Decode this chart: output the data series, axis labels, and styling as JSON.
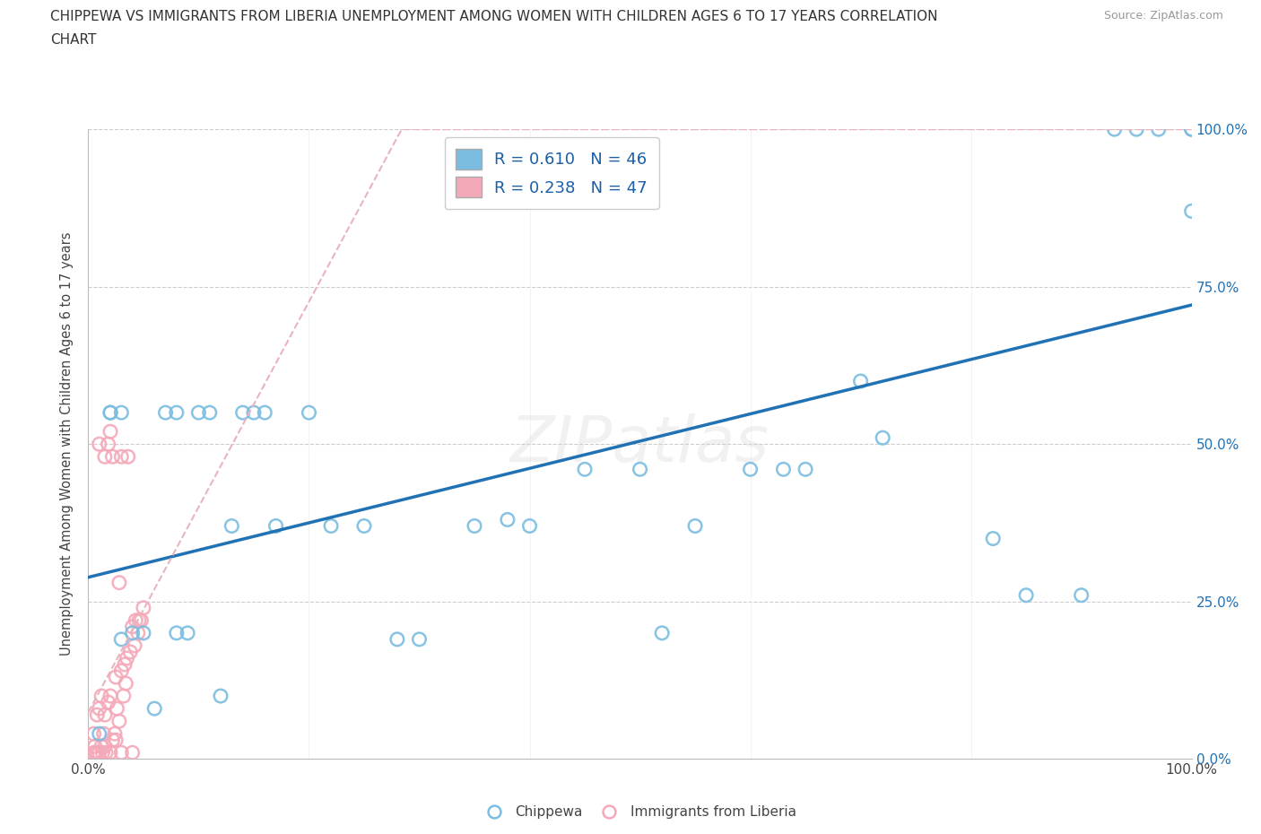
{
  "title_line1": "CHIPPEWA VS IMMIGRANTS FROM LIBERIA UNEMPLOYMENT AMONG WOMEN WITH CHILDREN AGES 6 TO 17 YEARS CORRELATION",
  "title_line2": "CHART",
  "source_text": "Source: ZipAtlas.com",
  "ylabel": "Unemployment Among Women with Children Ages 6 to 17 years",
  "xlim": [
    0.0,
    1.0
  ],
  "ylim": [
    0.0,
    1.0
  ],
  "R_chippewa": 0.61,
  "N_chippewa": 46,
  "R_liberia": 0.238,
  "N_liberia": 47,
  "chippewa_edge_color": "#7bbde0",
  "liberia_edge_color": "#f4a9b8",
  "trend_chippewa_color": "#2171b5",
  "trend_liberia_color": "#e8b4c0",
  "watermark": "ZIPatlas",
  "chippewa_x": [
    0.01,
    0.02,
    0.02,
    0.03,
    0.03,
    0.04,
    0.05,
    0.06,
    0.07,
    0.08,
    0.08,
    0.09,
    0.1,
    0.11,
    0.12,
    0.13,
    0.14,
    0.15,
    0.16,
    0.17,
    0.2,
    0.22,
    0.25,
    0.28,
    0.3,
    0.35,
    0.38,
    0.4,
    0.45,
    0.5,
    0.52,
    0.55,
    0.6,
    0.63,
    0.65,
    0.7,
    0.72,
    0.82,
    0.85,
    0.9,
    0.93,
    0.95,
    0.97,
    1.0,
    1.0,
    1.0
  ],
  "chippewa_y": [
    0.04,
    0.55,
    0.55,
    0.55,
    0.19,
    0.2,
    0.2,
    0.08,
    0.55,
    0.2,
    0.55,
    0.2,
    0.55,
    0.55,
    0.1,
    0.37,
    0.55,
    0.55,
    0.55,
    0.37,
    0.55,
    0.37,
    0.37,
    0.19,
    0.19,
    0.37,
    0.38,
    0.37,
    0.46,
    0.46,
    0.2,
    0.37,
    0.46,
    0.46,
    0.46,
    0.6,
    0.51,
    0.35,
    0.26,
    0.26,
    1.0,
    1.0,
    1.0,
    1.0,
    1.0,
    0.87
  ],
  "liberia_x": [
    0.005,
    0.005,
    0.006,
    0.007,
    0.008,
    0.008,
    0.01,
    0.01,
    0.01,
    0.012,
    0.012,
    0.013,
    0.014,
    0.015,
    0.015,
    0.015,
    0.016,
    0.018,
    0.018,
    0.02,
    0.02,
    0.02,
    0.022,
    0.022,
    0.024,
    0.025,
    0.025,
    0.026,
    0.028,
    0.028,
    0.03,
    0.03,
    0.03,
    0.032,
    0.033,
    0.034,
    0.035,
    0.036,
    0.038,
    0.04,
    0.04,
    0.042,
    0.043,
    0.045,
    0.046,
    0.048,
    0.05
  ],
  "liberia_y": [
    0.01,
    0.04,
    0.02,
    0.01,
    0.01,
    0.07,
    0.01,
    0.08,
    0.5,
    0.02,
    0.1,
    0.01,
    0.04,
    0.02,
    0.07,
    0.48,
    0.01,
    0.09,
    0.5,
    0.01,
    0.1,
    0.52,
    0.03,
    0.48,
    0.04,
    0.03,
    0.13,
    0.08,
    0.06,
    0.28,
    0.01,
    0.14,
    0.48,
    0.1,
    0.15,
    0.12,
    0.16,
    0.48,
    0.17,
    0.01,
    0.21,
    0.18,
    0.22,
    0.2,
    0.22,
    0.22,
    0.24
  ]
}
